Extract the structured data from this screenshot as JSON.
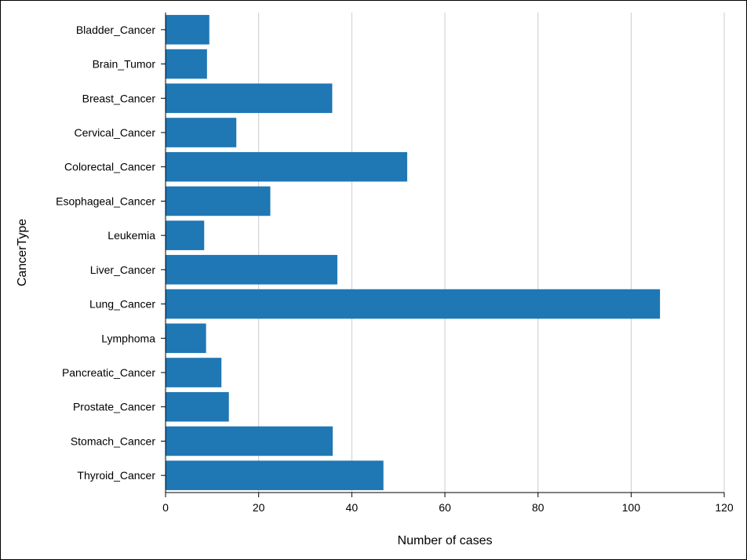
{
  "chart_data": {
    "type": "bar",
    "orientation": "horizontal",
    "title": "",
    "xlabel": "Number of cases",
    "ylabel": "CancerType",
    "xlim": [
      0,
      120
    ],
    "x_ticks": [
      0,
      20,
      40,
      60,
      80,
      100,
      120
    ],
    "grid": "vertical",
    "legend": "none",
    "bar_color": "#1f77b4",
    "categories": [
      "Bladder_Cancer",
      "Brain_Tumor",
      "Breast_Cancer",
      "Cervical_Cancer",
      "Colorectal_Cancer",
      "Esophageal_Cancer",
      "Leukemia",
      "Liver_Cancer",
      "Lung_Cancer",
      "Lymphoma",
      "Pancreatic_Cancer",
      "Prostate_Cancer",
      "Stomach_Cancer",
      "Thyroid_Cancer"
    ],
    "values": [
      9.4,
      8.9,
      35.8,
      15.2,
      51.9,
      22.5,
      8.3,
      36.9,
      106.2,
      8.7,
      12.0,
      13.6,
      35.9,
      46.8
    ]
  }
}
